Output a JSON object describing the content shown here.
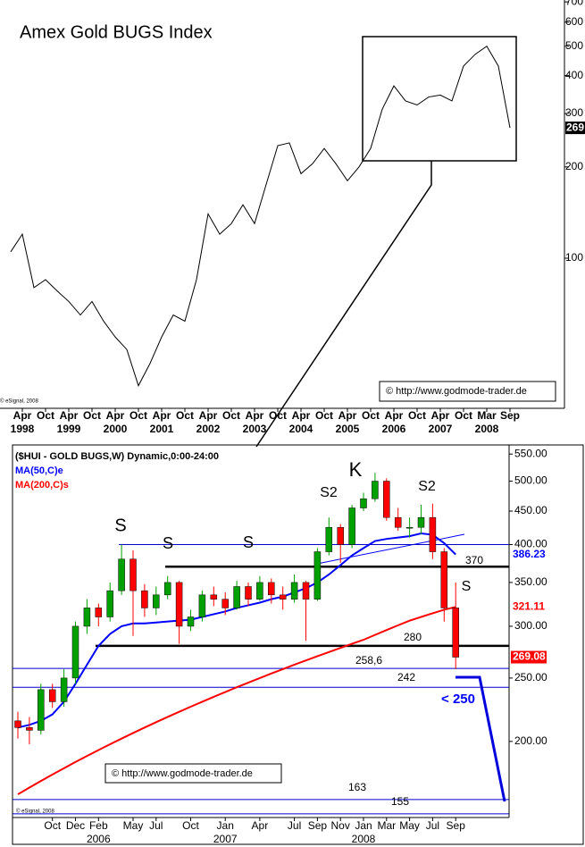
{
  "chart_data": [
    {
      "type": "line",
      "title": "Amex Gold BUGS Index",
      "color": "#000000",
      "log_y": true,
      "categories": [
        null,
        "Apr",
        null,
        "Oct",
        null,
        "Apr",
        null,
        "Oct",
        null,
        "Apr",
        null,
        "Oct",
        null,
        "Apr",
        null,
        "Oct",
        null,
        "Apr",
        null,
        "Oct",
        null,
        "Apr",
        null,
        "Oct",
        null,
        "Apr",
        null,
        "Oct",
        null,
        "Apr",
        null,
        "Oct",
        null,
        "Apr",
        null,
        "Oct",
        null,
        "Apr",
        null,
        "Oct",
        null,
        "Mar",
        null,
        "Sep"
      ],
      "years": [
        "1998",
        "1999",
        "2000",
        "2001",
        "2002",
        "2003",
        "2004",
        "2005",
        "2006",
        "2007",
        "2008"
      ],
      "values": [
        105,
        120,
        80,
        85,
        78,
        72,
        65,
        72,
        62,
        55,
        50,
        38,
        45,
        55,
        65,
        62,
        85,
        140,
        120,
        130,
        150,
        130,
        175,
        235,
        240,
        190,
        205,
        230,
        205,
        180,
        200,
        230,
        310,
        370,
        330,
        320,
        340,
        345,
        330,
        430,
        470,
        500,
        430,
        269
      ],
      "ylim": [
        32,
        710
      ],
      "yticks": [
        100,
        200,
        300,
        400,
        500,
        600,
        700
      ],
      "source": "© http://www.godmode-trader.de",
      "credit": "© eSignal, 2008"
    },
    {
      "type": "candlestick",
      "title": "($HUI - GOLD BUGS,W) Dynamic,0:00-24:00",
      "log_y": true,
      "up_color": "#00a000",
      "down_color": "#ff0000",
      "categories": [
        null,
        null,
        null,
        "Oct",
        null,
        "Dec",
        null,
        "Feb",
        null,
        null,
        "May",
        null,
        "Jul",
        null,
        null,
        "Oct",
        null,
        null,
        "Jan",
        null,
        null,
        "Apr",
        null,
        null,
        "Jul",
        null,
        "Sep",
        null,
        "Nov",
        null,
        "Jan",
        null,
        "Mar",
        null,
        "May",
        null,
        "Jul",
        null,
        "Sep"
      ],
      "years": [
        "2006",
        "2007",
        "2008"
      ],
      "open": [
        215,
        210,
        208,
        240,
        230,
        250,
        300,
        320,
        310,
        340,
        380,
        340,
        320,
        335,
        350,
        300,
        310,
        335,
        330,
        320,
        345,
        330,
        350,
        335,
        330,
        350,
        330,
        390,
        425,
        400,
        455,
        470,
        500,
        440,
        425,
        425,
        440,
        390,
        320
      ],
      "high": [
        222,
        218,
        245,
        245,
        258,
        305,
        330,
        325,
        350,
        400,
        392,
        348,
        345,
        358,
        352,
        318,
        340,
        345,
        338,
        352,
        350,
        358,
        355,
        345,
        360,
        352,
        395,
        440,
        430,
        460,
        480,
        515,
        505,
        455,
        440,
        460,
        462,
        395,
        350
      ],
      "low": [
        202,
        198,
        205,
        225,
        226,
        245,
        292,
        300,
        305,
        335,
        290,
        310,
        312,
        330,
        282,
        295,
        305,
        322,
        312,
        318,
        322,
        328,
        325,
        318,
        326,
        285,
        328,
        385,
        375,
        395,
        450,
        465,
        435,
        420,
        410,
        415,
        380,
        305,
        258
      ],
      "close": [
        210,
        208,
        240,
        230,
        250,
        300,
        320,
        310,
        340,
        380,
        340,
        320,
        335,
        350,
        300,
        310,
        335,
        330,
        320,
        345,
        330,
        350,
        335,
        330,
        350,
        330,
        390,
        425,
        400,
        455,
        470,
        500,
        440,
        425,
        425,
        440,
        390,
        320,
        269.08
      ],
      "series": [
        {
          "name": "MA(50,C)e",
          "color": "#0000ff",
          "values": [
            210,
            212,
            215,
            220,
            230,
            245,
            262,
            280,
            292,
            300,
            303,
            303,
            304,
            305,
            306,
            307,
            310,
            313,
            316,
            320,
            323,
            326,
            330,
            333,
            338,
            343,
            350,
            360,
            372,
            385,
            395,
            405,
            408,
            410,
            412,
            416,
            414,
            402,
            386.23
          ]
        },
        {
          "name": "MA(200,C)s",
          "color": "#ff0000",
          "values": [
            166,
            170,
            174,
            178,
            182,
            186,
            190,
            194,
            198,
            202,
            206,
            210,
            214,
            218,
            222,
            226,
            230,
            234,
            238,
            242,
            246,
            250,
            254,
            258,
            262,
            266,
            270,
            274,
            278,
            282,
            286,
            291,
            296,
            301,
            306,
            310,
            314,
            318,
            321.11
          ]
        }
      ],
      "ylim": [
        153,
        568
      ],
      "yticks": [
        {
          "value": 200,
          "label": "200.00"
        },
        {
          "value": 250,
          "label": "250.00"
        },
        {
          "value": 300,
          "label": "300.00"
        },
        {
          "value": 350,
          "label": "350.00"
        },
        {
          "value": 400,
          "label": "400.00"
        },
        {
          "value": 450,
          "label": "450.00"
        },
        {
          "value": 500,
          "label": "500.00"
        },
        {
          "value": 550,
          "label": "550.00"
        }
      ],
      "levels": [
        {
          "value": 400,
          "style": "thin"
        },
        {
          "value": 370,
          "label": "370",
          "style": "thick"
        },
        {
          "value": 280,
          "label": "280",
          "style": "thick"
        },
        {
          "value": 258.6,
          "label": "258,6",
          "style": "thin"
        },
        {
          "value": 242,
          "label": "242",
          "style": "thin"
        },
        {
          "value": 163,
          "label": "163",
          "style": "thin"
        },
        {
          "value": 155,
          "label": "155",
          "style": "thin"
        }
      ],
      "annotations": [
        "S",
        "S",
        "S",
        "S2",
        "K",
        "S2",
        "S",
        "< 250"
      ],
      "source": "© http://www.godmode-trader.de",
      "credit": "© eSignal, 2008"
    }
  ]
}
